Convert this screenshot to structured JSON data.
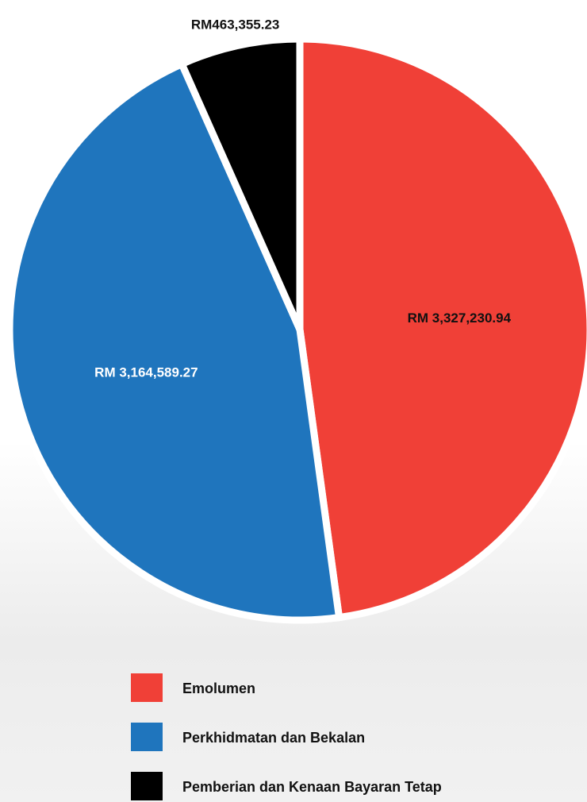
{
  "chart_data": {
    "type": "pie",
    "categories": [
      "Emolumen",
      "Perkhidmatan dan Bekalan",
      "Pemberian dan Kenaan Bayaran Tetap"
    ],
    "values": [
      3327230.94,
      3164589.27,
      463355.23
    ],
    "value_labels": [
      "RM 3,327,230.94",
      "RM 3,164,589.27",
      "RM463,355.23"
    ],
    "colors": [
      "#f04037",
      "#1f75bd",
      "#000000"
    ],
    "legend": "bottom"
  }
}
